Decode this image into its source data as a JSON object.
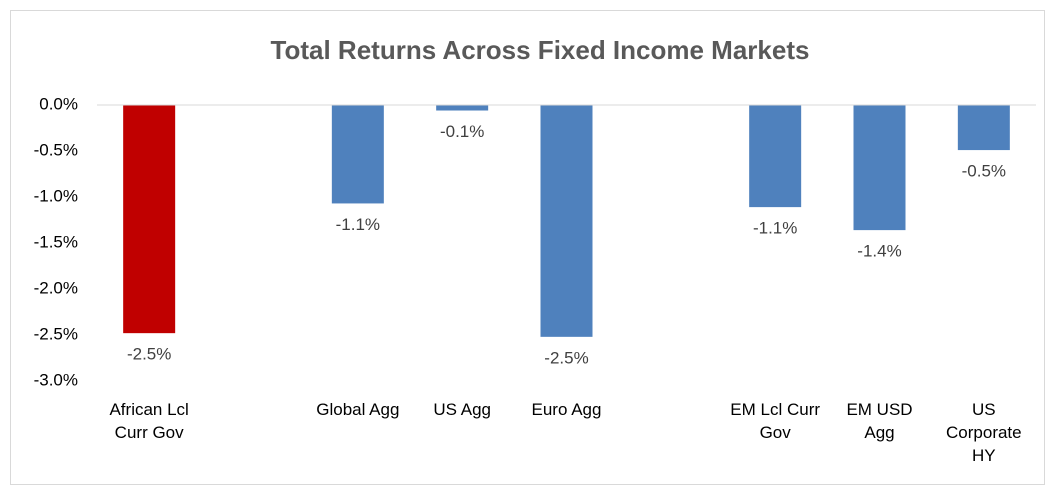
{
  "chart_data": {
    "type": "bar",
    "title": "Total Returns Across Fixed Income Markets",
    "categories": [
      "African Lcl Curr Gov",
      null,
      "Global Agg",
      "US Agg",
      "Euro Agg",
      null,
      "EM Lcl Curr Gov",
      "EM USD Agg",
      "US Corporate HY"
    ],
    "values": [
      -2.48,
      null,
      -1.07,
      -0.06,
      -2.52,
      null,
      -1.11,
      -1.36,
      -0.49
    ],
    "value_labels": [
      "-2.5%",
      null,
      "-1.1%",
      "-0.1%",
      "-2.5%",
      null,
      "-1.1%",
      "-1.4%",
      "-0.5%"
    ],
    "colors": [
      "#c00000",
      null,
      "#4f81bd",
      "#4f81bd",
      "#4f81bd",
      null,
      "#4f81bd",
      "#4f81bd",
      "#4f81bd"
    ],
    "ylim": [
      -3.0,
      0.0
    ],
    "yticks": [
      {
        "value": 0.0,
        "label": "0.0%"
      },
      {
        "value": -0.5,
        "label": "-0.5%"
      },
      {
        "value": -1.0,
        "label": "-1.0%"
      },
      {
        "value": -1.5,
        "label": "-1.5%"
      },
      {
        "value": -2.0,
        "label": "-2.0%"
      },
      {
        "value": -2.5,
        "label": "-2.5%"
      },
      {
        "value": -3.0,
        "label": "-3.0%"
      }
    ],
    "grid": false
  }
}
